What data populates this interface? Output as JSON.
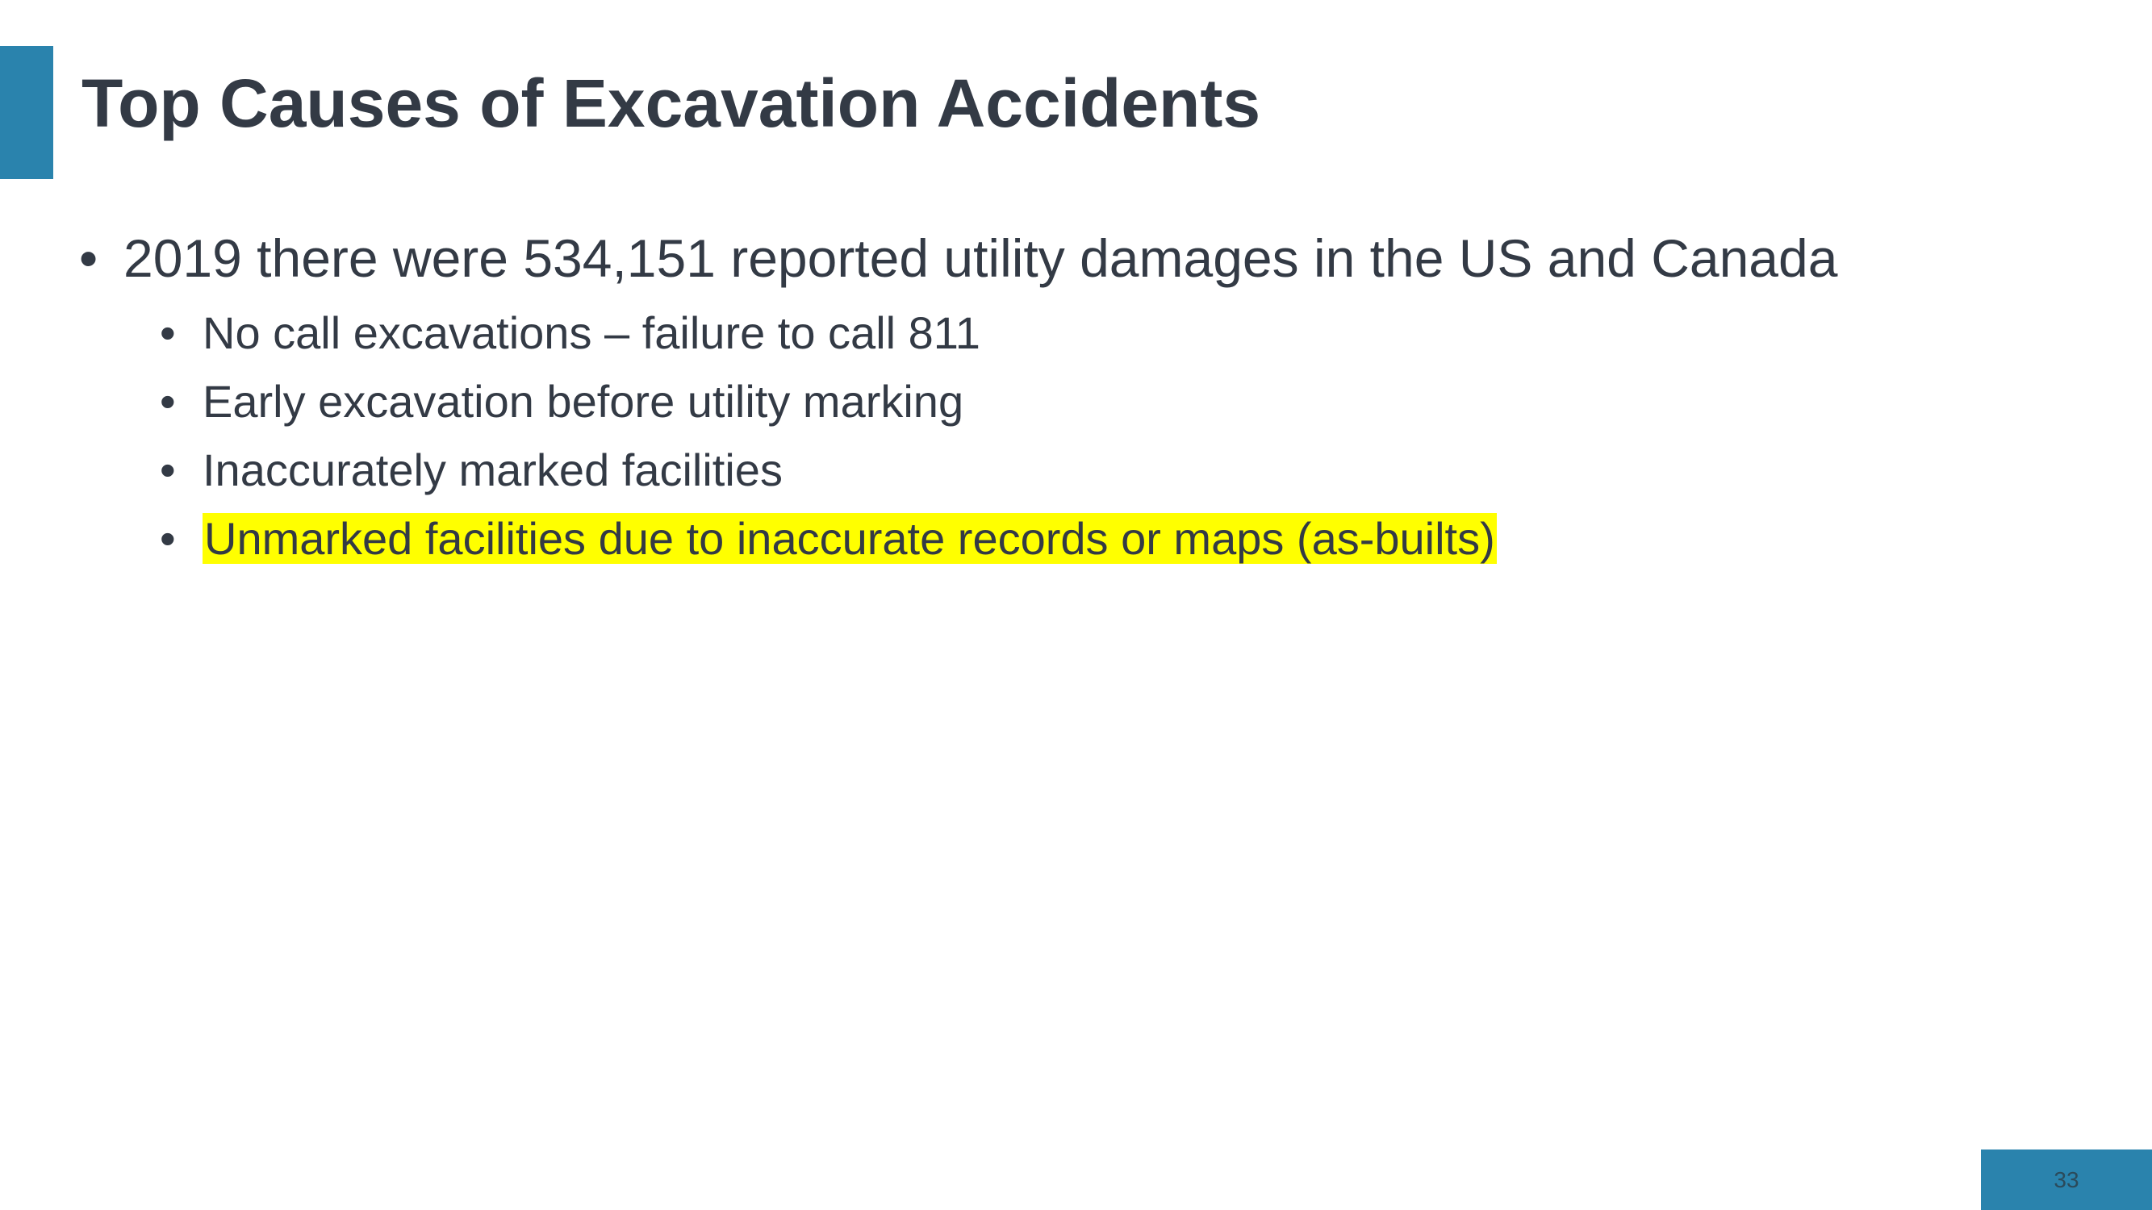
{
  "slide": {
    "title": "Top Causes of Excavation Accidents",
    "main_bullet": "2019 there were 534,151 reported utility damages in the US and Canada",
    "sub_bullets": [
      "No call excavations – failure to call 811",
      "Early excavation before utility marking",
      "Inaccurately marked facilities",
      "Unmarked facilities due to inaccurate records or maps (as-builts)"
    ],
    "page_number": "33"
  },
  "colors": {
    "accent": "#2a83ad",
    "text": "#333a45",
    "highlight": "#ffff00"
  },
  "bullet_glyph": "•"
}
